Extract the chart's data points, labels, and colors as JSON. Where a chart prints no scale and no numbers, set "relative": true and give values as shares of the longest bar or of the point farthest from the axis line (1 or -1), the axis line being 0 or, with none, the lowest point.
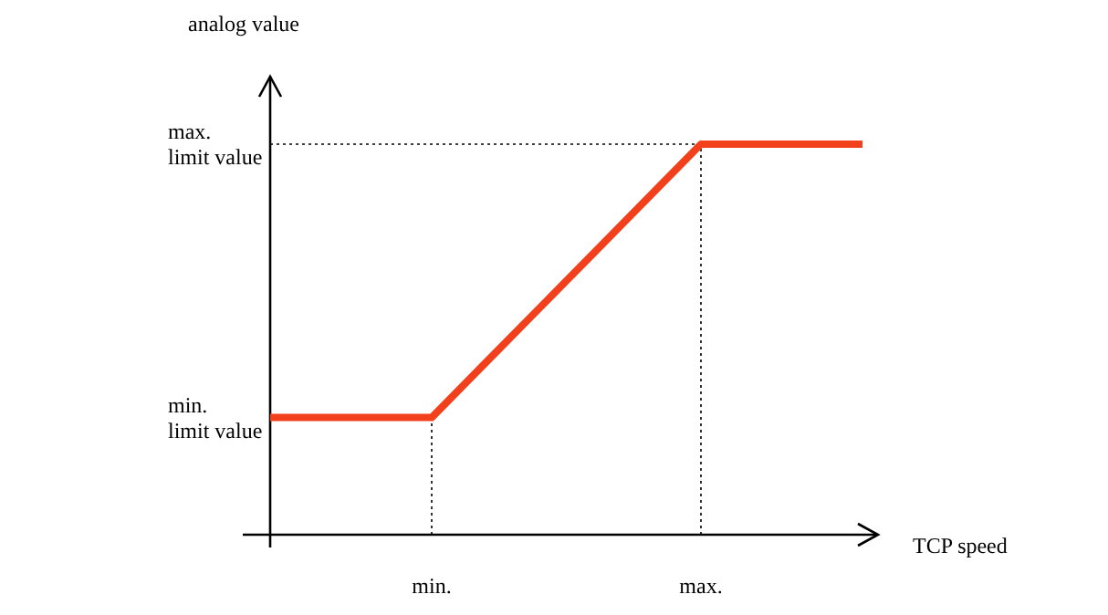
{
  "chart_data": {
    "type": "line",
    "relative": true,
    "ylabel": "analog value",
    "xlabel": "TCP speed",
    "categories": [
      null,
      null,
      null,
      "min.",
      null,
      null,
      null,
      null,
      "max.",
      null,
      null,
      null
    ],
    "series": [
      {
        "color": "#f2401c",
        "values": [
          0.3,
          0.3,
          0.3,
          0.3,
          0.44,
          0.58,
          0.72,
          0.86,
          1,
          1,
          1,
          1
        ]
      }
    ],
    "ref_lines": [
      {
        "axis": "x",
        "value": "min.",
        "line_style": "dotted"
      },
      {
        "axis": "x",
        "value": "max.",
        "line_style": "dotted"
      },
      {
        "axis": "y",
        "value": 1,
        "line_style": "dotted"
      }
    ],
    "annotations": [
      "min.\nlimit value",
      "max.\nlimit value"
    ],
    "grid": false,
    "marker": "none",
    "line_style": "solid"
  }
}
